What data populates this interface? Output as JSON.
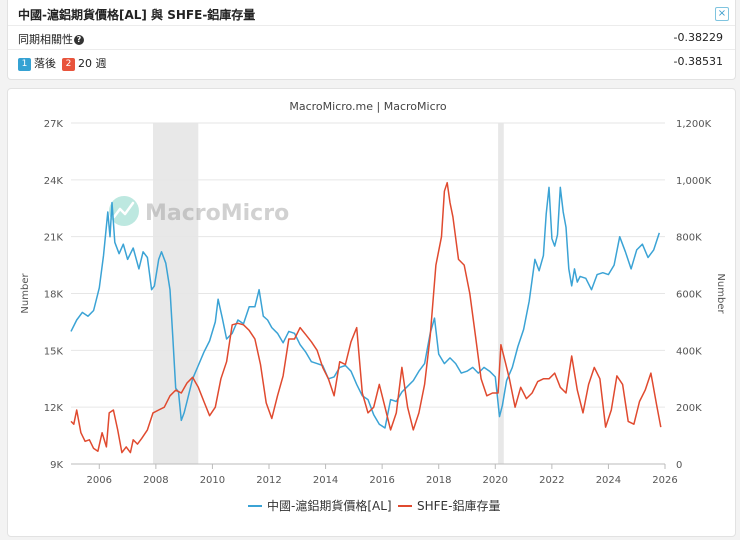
{
  "header": {
    "title": "中國-滬鋁期貨價格[AL] 與 SHFE-鋁庫存量",
    "close_label": "×",
    "correlation_label": "同期相關性",
    "correlation_value": "-0.38229",
    "lag_badge_1": "1",
    "lag_label_1": "落後",
    "lag_badge_2": "2",
    "lag_label_2": "20 週",
    "lag_value": "-0.38531"
  },
  "chart_data": {
    "type": "line",
    "title": "MacroMicro.me | MacroMicro",
    "watermark": "MacroMicro",
    "xlabel": "",
    "ylabel_left": "Number",
    "ylabel_right": "Number",
    "xlim": [
      2005,
      2026
    ],
    "x_ticks": [
      "2006",
      "2008",
      "2010",
      "2012",
      "2014",
      "2016",
      "2018",
      "2020",
      "2022",
      "2024",
      "2026"
    ],
    "ylim_left": [
      9000,
      27000
    ],
    "y_ticks_left": [
      "9K",
      "12K",
      "15K",
      "18K",
      "21K",
      "24K",
      "27K"
    ],
    "ylim_right": [
      0,
      1200000
    ],
    "y_ticks_right": [
      "0",
      "200K",
      "400K",
      "600K",
      "800K",
      "1,000K",
      "1,200K"
    ],
    "shaded_periods": [
      [
        2007.9,
        2009.5
      ],
      [
        2020.1,
        2020.3
      ]
    ],
    "series": [
      {
        "name": "中國-滬鋁期貨價格[AL]",
        "axis": "left",
        "color": "#3ba3d5",
        "x": [
          2005.0,
          2005.2,
          2005.4,
          2005.6,
          2005.8,
          2006.0,
          2006.15,
          2006.3,
          2006.38,
          2006.45,
          2006.55,
          2006.7,
          2006.85,
          2007.0,
          2007.2,
          2007.4,
          2007.55,
          2007.7,
          2007.85,
          2007.95,
          2008.1,
          2008.2,
          2008.35,
          2008.5,
          2008.6,
          2008.7,
          2008.8,
          2008.9,
          2009.0,
          2009.1,
          2009.3,
          2009.5,
          2009.7,
          2009.9,
          2010.1,
          2010.2,
          2010.35,
          2010.5,
          2010.7,
          2010.9,
          2011.1,
          2011.3,
          2011.5,
          2011.65,
          2011.8,
          2011.95,
          2012.1,
          2012.3,
          2012.5,
          2012.7,
          2012.9,
          2013.1,
          2013.3,
          2013.5,
          2013.7,
          2013.9,
          2014.1,
          2014.3,
          2014.5,
          2014.7,
          2014.9,
          2015.1,
          2015.3,
          2015.5,
          2015.7,
          2015.9,
          2016.1,
          2016.3,
          2016.5,
          2016.7,
          2016.9,
          2017.1,
          2017.3,
          2017.5,
          2017.7,
          2017.85,
          2018.0,
          2018.2,
          2018.4,
          2018.6,
          2018.8,
          2019.0,
          2019.2,
          2019.4,
          2019.6,
          2019.8,
          2020.0,
          2020.15,
          2020.25,
          2020.4,
          2020.6,
          2020.8,
          2021.0,
          2021.2,
          2021.4,
          2021.55,
          2021.7,
          2021.8,
          2021.9,
          2022.0,
          2022.1,
          2022.2,
          2022.3,
          2022.4,
          2022.5,
          2022.6,
          2022.7,
          2022.8,
          2022.9,
          2023.0,
          2023.2,
          2023.4,
          2023.6,
          2023.8,
          2024.0,
          2024.2,
          2024.4,
          2024.6,
          2024.8,
          2025.0,
          2025.2,
          2025.4,
          2025.6,
          2025.8
        ],
        "values": [
          16000,
          16600,
          17000,
          16800,
          17100,
          18300,
          20000,
          22300,
          21000,
          22800,
          20700,
          20100,
          20600,
          19800,
          20400,
          19300,
          20200,
          19900,
          18200,
          18400,
          19800,
          20200,
          19600,
          18200,
          15700,
          13000,
          12800,
          11300,
          11700,
          12300,
          13500,
          14200,
          14900,
          15500,
          16500,
          17700,
          16700,
          15600,
          15900,
          16600,
          16400,
          17300,
          17300,
          18200,
          16800,
          16600,
          16200,
          15900,
          15400,
          16000,
          15900,
          15300,
          14900,
          14400,
          14300,
          14200,
          13500,
          13600,
          14100,
          14200,
          13900,
          13200,
          12600,
          12400,
          11600,
          11100,
          10900,
          12400,
          12300,
          12800,
          13100,
          13400,
          13900,
          14300,
          15900,
          16700,
          14800,
          14300,
          14600,
          14300,
          13800,
          13900,
          14100,
          13800,
          14100,
          13900,
          13600,
          11500,
          12100,
          13400,
          14100,
          15200,
          16100,
          17600,
          19800,
          19200,
          20000,
          22200,
          23600,
          20900,
          20500,
          21100,
          23600,
          22300,
          21500,
          19300,
          18400,
          19300,
          18600,
          18900,
          18800,
          18200,
          19000,
          19100,
          19000,
          19500,
          21000,
          20200,
          19300,
          20300,
          20600,
          19900,
          20300,
          21200
        ]
      },
      {
        "name": "SHFE-鋁庫存量",
        "axis": "right",
        "color": "#e04a2f",
        "x": [
          2005.0,
          2005.1,
          2005.2,
          2005.35,
          2005.5,
          2005.65,
          2005.8,
          2005.95,
          2006.1,
          2006.25,
          2006.35,
          2006.5,
          2006.65,
          2006.8,
          2006.95,
          2007.1,
          2007.2,
          2007.35,
          2007.5,
          2007.7,
          2007.9,
          2008.1,
          2008.3,
          2008.5,
          2008.7,
          2008.9,
          2009.1,
          2009.3,
          2009.5,
          2009.7,
          2009.9,
          2010.1,
          2010.3,
          2010.5,
          2010.7,
          2010.9,
          2011.1,
          2011.3,
          2011.5,
          2011.7,
          2011.9,
          2012.1,
          2012.3,
          2012.5,
          2012.7,
          2012.9,
          2013.1,
          2013.3,
          2013.5,
          2013.7,
          2013.9,
          2014.1,
          2014.3,
          2014.5,
          2014.7,
          2014.9,
          2015.1,
          2015.3,
          2015.5,
          2015.7,
          2015.9,
          2016.1,
          2016.3,
          2016.5,
          2016.7,
          2016.9,
          2017.1,
          2017.3,
          2017.5,
          2017.7,
          2017.9,
          2018.1,
          2018.2,
          2018.3,
          2018.4,
          2018.5,
          2018.7,
          2018.9,
          2019.1,
          2019.3,
          2019.5,
          2019.7,
          2019.9,
          2020.1,
          2020.2,
          2020.35,
          2020.5,
          2020.7,
          2020.9,
          2021.1,
          2021.3,
          2021.5,
          2021.7,
          2021.9,
          2022.1,
          2022.3,
          2022.5,
          2022.7,
          2022.9,
          2023.1,
          2023.3,
          2023.5,
          2023.7,
          2023.9,
          2024.1,
          2024.3,
          2024.5,
          2024.7,
          2024.9,
          2025.1,
          2025.3,
          2025.5,
          2025.7,
          2025.85
        ],
        "values": [
          150000,
          140000,
          190000,
          110000,
          80000,
          85000,
          55000,
          45000,
          110000,
          60000,
          180000,
          190000,
          120000,
          40000,
          60000,
          40000,
          85000,
          70000,
          90000,
          120000,
          180000,
          190000,
          200000,
          240000,
          260000,
          250000,
          285000,
          305000,
          270000,
          220000,
          170000,
          200000,
          300000,
          360000,
          490000,
          495000,
          490000,
          470000,
          440000,
          350000,
          215000,
          160000,
          240000,
          310000,
          440000,
          440000,
          480000,
          455000,
          430000,
          400000,
          340000,
          300000,
          240000,
          360000,
          350000,
          430000,
          480000,
          250000,
          180000,
          200000,
          280000,
          200000,
          120000,
          180000,
          340000,
          200000,
          120000,
          180000,
          280000,
          450000,
          700000,
          800000,
          960000,
          990000,
          920000,
          870000,
          720000,
          700000,
          600000,
          450000,
          300000,
          240000,
          250000,
          250000,
          420000,
          360000,
          300000,
          200000,
          270000,
          230000,
          250000,
          290000,
          300000,
          300000,
          320000,
          270000,
          250000,
          380000,
          260000,
          180000,
          280000,
          340000,
          300000,
          130000,
          190000,
          310000,
          280000,
          150000,
          140000,
          220000,
          260000,
          320000,
          210000,
          130000
        ]
      }
    ]
  }
}
